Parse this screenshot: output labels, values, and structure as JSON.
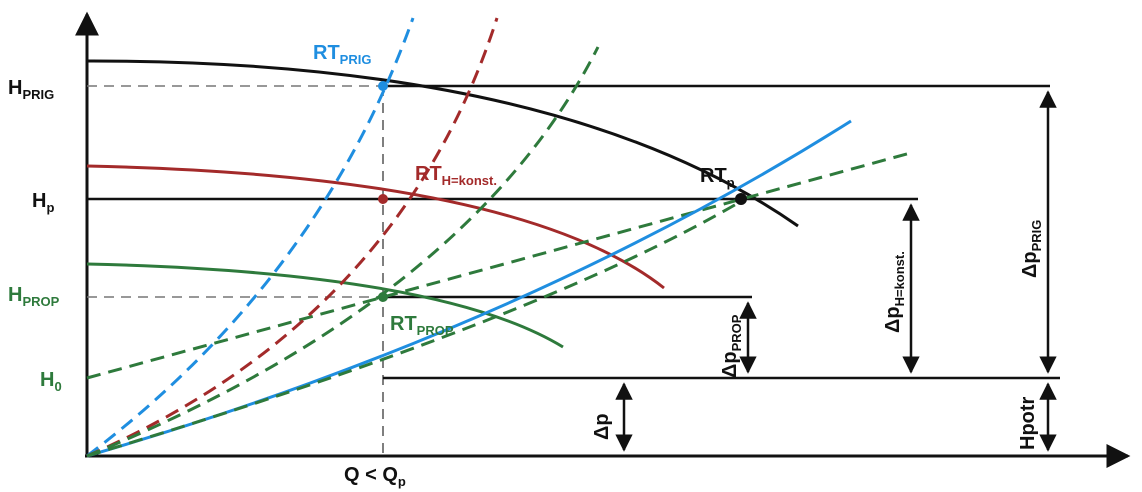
{
  "colors": {
    "black": "#111111",
    "blue": "#1f8ee0",
    "red": "#a32a2a",
    "green": "#2e7a3c",
    "guide": "#777777"
  },
  "labels": {
    "h_prig": {
      "main": "H",
      "sub": "PRIG"
    },
    "h_p": {
      "main": "H",
      "sub": "p"
    },
    "h_prop": {
      "main": "H",
      "sub": "PROP"
    },
    "h_0": {
      "main": "H",
      "sub": "0"
    },
    "q_axis": {
      "main": "Q < Q",
      "sub": "p"
    },
    "rt_prig": {
      "main": "RT",
      "sub": "PRIG"
    },
    "rt_hkonst": {
      "main": "RT",
      "sub": "H=konst."
    },
    "rt_p": {
      "main": "RT",
      "sub": "p"
    },
    "rt_prop": {
      "main": "RT",
      "sub": "PROP"
    },
    "dp_prig": {
      "main": "Δp",
      "sub": "PRIG"
    },
    "dp_hkonst": {
      "main": "Δp",
      "sub": "H=konst."
    },
    "dp_prop": {
      "main": "Δp",
      "sub": "PROP"
    },
    "dp": {
      "main": "Δp",
      "sub": ""
    },
    "hpotr": {
      "main": "Hpotr",
      "sub": ""
    }
  }
}
